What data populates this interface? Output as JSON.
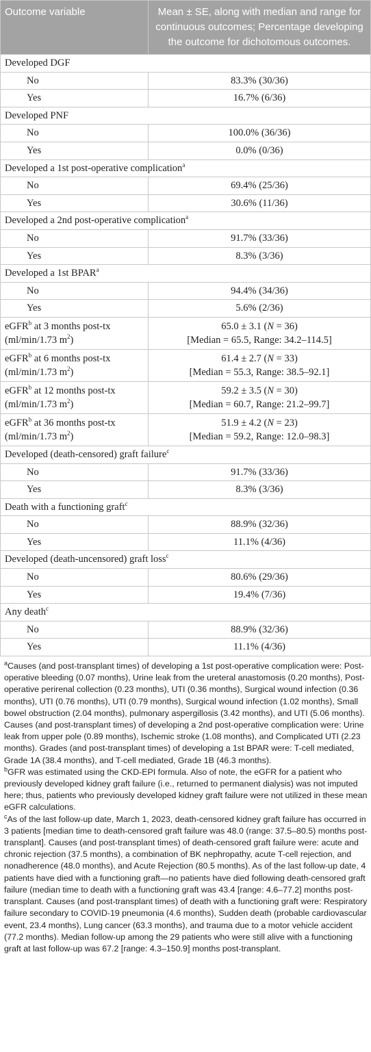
{
  "table": {
    "header": [
      "Outcome variable",
      "Mean ± SE, along with median and range for continuous outcomes; Percentage developing the outcome for dichotomous outcomes."
    ],
    "rows": [
      {
        "label": "Developed DGF"
      },
      {
        "label": "No",
        "value": "83.3% (30/36)"
      },
      {
        "label": "Yes",
        "value": "16.7% (6/36)"
      },
      {
        "label": "Developed PNF"
      },
      {
        "label": "No",
        "value": "100.0% (36/36)"
      },
      {
        "label": "Yes",
        "value": "0.0% (0/36)"
      },
      {
        "label": "Developed a 1st post-operative complication",
        "note": "a"
      },
      {
        "label": "No",
        "value": "69.4% (25/36)"
      },
      {
        "label": "Yes",
        "value": "30.6% (11/36)"
      },
      {
        "label": "Developed a 2nd post-operative complication",
        "note": "a"
      },
      {
        "label": "No",
        "value": "91.7% (33/36)"
      },
      {
        "label": "Yes",
        "value": "8.3% (3/36)"
      },
      {
        "label": "Developed a 1st BPAR",
        "note": "a"
      },
      {
        "label": "No",
        "value": "94.4% (34/36)"
      },
      {
        "label": "Yes",
        "value": "5.6% (2/36)"
      },
      {
        "label": [
          "eGFR",
          "b",
          " at 3 months post-tx"
        ],
        "unit": [
          "(ml/min/1.73 m",
          "2",
          ")"
        ],
        "value": [
          "65.0 ± 3.1 (",
          "N",
          " = 36)"
        ],
        "summary": "[Median = 65.5, Range: 34.2–114.5]"
      },
      {
        "label": [
          "eGFR",
          "b",
          " at 6 months post-tx"
        ],
        "unit": [
          "(ml/min/1.73 m",
          "2",
          ")"
        ],
        "value": [
          "61.4 ± 2.7 (",
          "N",
          " = 33)"
        ],
        "summary": "[Median = 55.3, Range: 38.5–92.1]"
      },
      {
        "label": [
          "eGFR",
          "b",
          " at 12 months post-tx"
        ],
        "unit": [
          "(ml/min/1.73 m",
          "2",
          ")"
        ],
        "value": [
          "59.2 ± 3.5 (",
          "N",
          " = 30)"
        ],
        "summary": "[Median = 60.7, Range: 21.2–99.7]"
      },
      {
        "label": [
          "eGFR",
          "b",
          " at 36 months post-tx"
        ],
        "unit": [
          "(ml/min/1.73 m",
          "2",
          ")"
        ],
        "value": [
          "51.9 ± 4.2 (",
          "N",
          " = 23)"
        ],
        "summary": "[Median = 59.2, Range: 12.0–98.3]"
      },
      {
        "label": "Developed (death-censored) graft failure",
        "note": "c"
      },
      {
        "label": "No",
        "value": "91.7% (33/36)"
      },
      {
        "label": "Yes",
        "value": "8.3% (3/36)"
      },
      {
        "label": "Death with a functioning graft",
        "note": "c"
      },
      {
        "label": "No",
        "value": "88.9% (32/36)"
      },
      {
        "label": "Yes",
        "value": "11.1% (4/36)"
      },
      {
        "label": "Developed (death-uncensored) graft loss",
        "note": "c"
      },
      {
        "label": "No",
        "value": "80.6% (29/36)"
      },
      {
        "label": "Yes",
        "value": "19.4% (7/36)"
      },
      {
        "label": "Any death",
        "note": "c"
      },
      {
        "label": "No",
        "value": "88.9% (32/36)"
      },
      {
        "label": "Yes",
        "value": "11.1% (4/36)"
      }
    ]
  },
  "footnotes": [
    {
      "mark": "a",
      "text": "Causes (and post-transplant times) of developing a 1st post-operative complication were: Post-operative bleeding (0.07 months), Urine leak from the ureteral anastomosis (0.20 months), Post-operative perirenal collection (0.23 months), UTI (0.36 months), Surgical wound infection (0.36 months), UTI (0.76 months), UTI (0.79 months), Surgical wound infection (1.02 months), Small bowel obstruction (2.04 months), pulmonary aspergillosis (3.42 months), and UTI (5.06 months). Causes (and post-transplant times) of developing a 2nd post-operative complication were: Urine leak from upper pole (0.89 months), Ischemic stroke (1.08 months), and Complicated UTI (2.23 months). Grades (and post-transplant times) of developing a 1st BPAR were: T-cell mediated, Grade 1A (38.4 months), and T-cell mediated, Grade 1B (46.3 months)."
    },
    {
      "mark": "b",
      "text": "GFR was estimated using the CKD-EPI formula. Also of note, the eGFR for a patient who previously developed kidney graft failure (i.e., returned to permanent dialysis) was not imputed here; thus, patients who previously developed kidney graft failure were not utilized in these mean eGFR calculations."
    },
    {
      "mark": "c",
      "text": "As of the last follow-up date, March 1, 2023, death-censored kidney graft failure has occurred in 3 patients [median time to death-censored graft failure was 48.0 (range: 37.5–80.5) months post-transplant]. Causes (and post-transplant times) of death-censored graft failure were: acute and chronic rejection (37.5 months), a combination of BK nephropathy, acute T-cell rejection, and nonadherence (48.0 months), and Acute Rejection (80.5 months). As of the last follow-up date, 4 patients have died with a functioning graft—no patients have died following death-censored graft failure (median time to death with a functioning graft was 43.4 [range: 4.6–77.2] months post-transplant. Causes (and post-transplant times) of death with a functioning graft were: Respiratory failure secondary to COVID-19 pneumonia (4.6 months), Sudden death (probable cardiovascular event, 23.4 months), Lung cancer (63.3 months), and trauma due to a motor vehicle accident (77.2 months). Median follow-up among the 29 patients who were still alive with a functioning graft at last follow-up was 67.2 [range: 4.3–150.9] months post-transplant."
    }
  ]
}
